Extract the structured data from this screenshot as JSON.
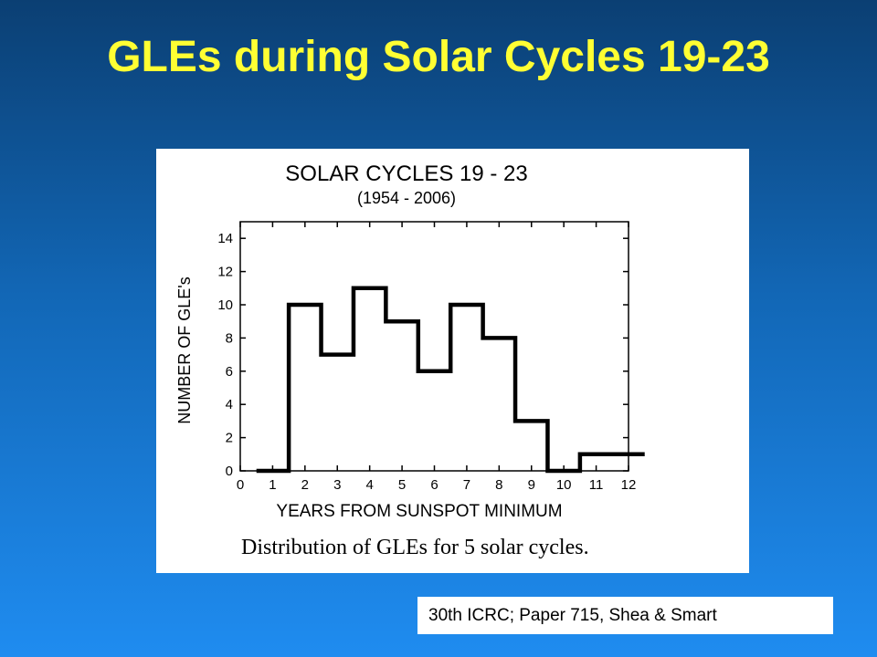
{
  "slide": {
    "title": "GLEs during Solar Cycles 19-23",
    "citation": "30th ICRC; Paper 715, Shea & Smart",
    "title_color": "#ffff33",
    "background_top": "#0b3f73",
    "background_bottom": "#1f8cf0"
  },
  "chart_data": {
    "type": "histogram-step",
    "title": "SOLAR CYCLES  19 - 23",
    "subtitle": "(1954 - 2006)",
    "xlabel": "YEARS FROM SUNSPOT MINIMUM",
    "ylabel": "NUMBER OF GLE's",
    "caption": "Distribution of GLEs for 5 solar cycles.",
    "xlim": [
      0,
      12
    ],
    "ylim": [
      0,
      15
    ],
    "x_ticks": [
      0,
      1,
      2,
      3,
      4,
      5,
      6,
      7,
      8,
      9,
      10,
      11,
      12
    ],
    "y_ticks": [
      0,
      2,
      4,
      6,
      8,
      10,
      12,
      14
    ],
    "x": [
      1,
      2,
      3,
      4,
      5,
      6,
      7,
      8,
      9,
      10,
      11,
      12
    ],
    "values": [
      0,
      10,
      7,
      11,
      9,
      6,
      10,
      8,
      3,
      0,
      1,
      1
    ],
    "grid": false,
    "line_color": "#000000"
  }
}
